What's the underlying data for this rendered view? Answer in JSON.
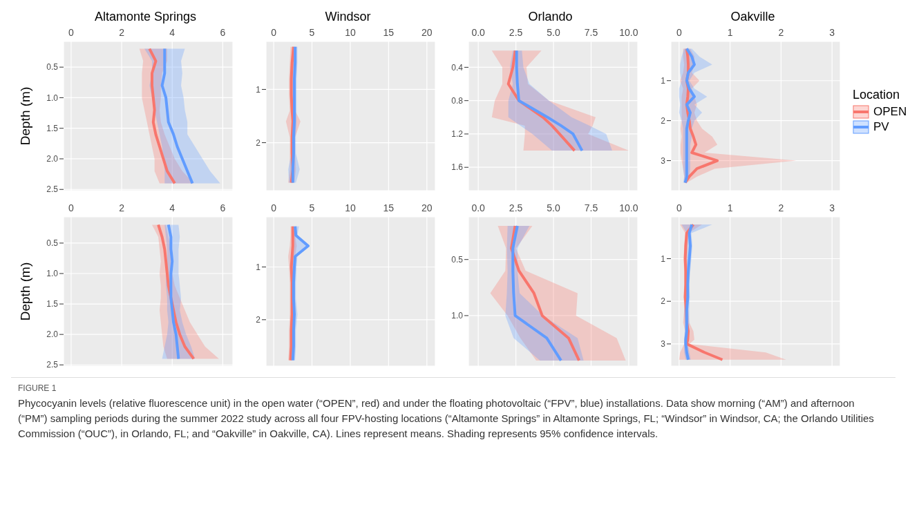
{
  "chart_data": [
    {
      "type": "line",
      "orientation": "horizontal",
      "title": "Altamonte Springs",
      "ylabel": "Depth (m)",
      "xlim": [
        -0.3,
        6.4
      ],
      "xticks": [
        0,
        2,
        4,
        6
      ],
      "ylim": [
        2.52,
        0.08
      ],
      "yticks": [
        {
          "value": 0.5,
          "label": "0.5"
        },
        {
          "value": 1,
          "label": "1.0"
        },
        {
          "value": 1.5,
          "label": "1.5"
        },
        {
          "value": 2,
          "label": "2.0"
        },
        {
          "value": 2.5,
          "label": "2.5"
        }
      ],
      "grid": true,
      "marker": "none",
      "series": [
        {
          "color": "#f8766d",
          "x": [
            0.2,
            0.4,
            0.6,
            0.8,
            1.0,
            1.2,
            1.4,
            1.6,
            1.8,
            2.0,
            2.2,
            2.4
          ],
          "values": [
            3.1,
            3.35,
            3.2,
            3.2,
            3.25,
            3.3,
            3.25,
            3.35,
            3.5,
            3.65,
            3.8,
            4.1
          ],
          "lower": [
            2.7,
            2.85,
            2.8,
            2.8,
            2.8,
            2.9,
            3.0,
            3.1,
            3.2,
            3.3,
            3.3,
            3.5
          ],
          "upper": [
            3.8,
            3.8,
            3.6,
            3.55,
            3.55,
            3.5,
            3.55,
            3.7,
            3.9,
            4.1,
            4.4,
            4.85
          ]
        },
        {
          "color": "#619cff",
          "x": [
            0.2,
            0.4,
            0.6,
            0.8,
            1.0,
            1.2,
            1.4,
            1.6,
            1.8,
            2.0,
            2.2,
            2.4
          ],
          "values": [
            3.7,
            3.7,
            3.7,
            3.6,
            3.75,
            3.8,
            3.85,
            4.05,
            4.2,
            4.4,
            4.6,
            4.8
          ],
          "lower": [
            2.9,
            3.2,
            3.2,
            3.1,
            3.2,
            3.3,
            3.4,
            3.5,
            3.6,
            3.65,
            3.7,
            3.7
          ],
          "upper": [
            4.5,
            4.35,
            4.4,
            4.35,
            4.45,
            4.5,
            4.6,
            4.6,
            4.9,
            5.2,
            5.5,
            5.9
          ]
        }
      ]
    },
    {
      "type": "line",
      "orientation": "horizontal",
      "title": "Windsor",
      "xlim": [
        -1,
        21.1
      ],
      "xticks": [
        0,
        5,
        10,
        15,
        20
      ],
      "ylim": [
        2.9,
        0.1
      ],
      "yticks": [
        1,
        2
      ],
      "grid": true,
      "marker": "none",
      "series": [
        {
          "color": "#f8766d",
          "x": [
            0.2,
            0.5,
            0.8,
            1.1,
            1.4,
            1.6,
            1.9,
            2.2,
            2.5,
            2.75
          ],
          "values": [
            2.6,
            2.4,
            2.3,
            2.3,
            2.4,
            2.5,
            2.4,
            2.4,
            2.5,
            2.3
          ],
          "lower": [
            2.2,
            2.1,
            2.0,
            2.0,
            2.1,
            1.6,
            2.1,
            2.1,
            2.1,
            1.9
          ],
          "upper": [
            3.0,
            2.8,
            2.7,
            2.7,
            2.8,
            3.5,
            2.8,
            2.8,
            2.9,
            2.7
          ]
        },
        {
          "color": "#619cff",
          "x": [
            0.2,
            0.5,
            0.8,
            1.1,
            1.4,
            1.6,
            1.9,
            2.2,
            2.5,
            2.75
          ],
          "values": [
            2.8,
            2.8,
            2.7,
            2.7,
            2.7,
            2.7,
            2.6,
            2.6,
            2.5,
            2.5
          ],
          "lower": [
            2.5,
            2.5,
            2.4,
            2.4,
            2.4,
            2.4,
            2.3,
            2.3,
            1.9,
            2.0
          ],
          "upper": [
            3.1,
            3.1,
            3.0,
            3.0,
            3.0,
            3.0,
            2.9,
            2.9,
            3.4,
            2.9
          ]
        }
      ]
    },
    {
      "type": "line",
      "orientation": "horizontal",
      "title": "Orlando",
      "xlim": [
        -0.65,
        10.6
      ],
      "xticks": [
        {
          "value": 0,
          "label": "0.0"
        },
        {
          "value": 2.5,
          "label": "2.5"
        },
        {
          "value": 5,
          "label": "5.0"
        },
        {
          "value": 7.5,
          "label": "7.5"
        },
        {
          "value": 10,
          "label": "10.0"
        }
      ],
      "ylim": [
        1.88,
        0.09
      ],
      "yticks": [
        0.4,
        0.8,
        1.2,
        1.6
      ],
      "grid": true,
      "marker": "none",
      "series": [
        {
          "color": "#f8766d",
          "x": [
            0.2,
            0.4,
            0.6,
            0.8,
            1.0,
            1.1,
            1.2,
            1.4
          ],
          "values": [
            2.46,
            2.3,
            2.0,
            2.7,
            4.3,
            4.9,
            5.4,
            6.4
          ],
          "lower": [
            0.9,
            1.6,
            1.6,
            1.1,
            0.9,
            3.1,
            3.1,
            3.0
          ],
          "upper": [
            4.2,
            3.2,
            3.3,
            4.7,
            7.8,
            7.6,
            7.3,
            10.0
          ]
        },
        {
          "color": "#619cff",
          "x": [
            0.2,
            0.4,
            0.6,
            0.8,
            1.0,
            1.1,
            1.2,
            1.4
          ],
          "values": [
            2.55,
            2.55,
            2.6,
            2.7,
            4.6,
            5.5,
            6.3,
            6.9
          ],
          "lower": [
            2.3,
            2.1,
            2.3,
            2.0,
            2.0,
            2.8,
            3.6,
            4.9
          ],
          "upper": [
            2.9,
            3.0,
            3.4,
            4.7,
            6.2,
            7.4,
            8.5,
            8.9
          ]
        }
      ]
    },
    {
      "type": "line",
      "orientation": "horizontal",
      "title": "Oakville",
      "xlim": [
        -0.16,
        3.16
      ],
      "xticks": [
        0,
        1,
        2,
        3
      ],
      "ylim": [
        3.75,
        0.02
      ],
      "yticks": [
        1,
        2,
        3
      ],
      "grid": true,
      "marker": "none",
      "legend": "right",
      "legend_title": "Location",
      "series": [
        {
          "name": "OPEN",
          "color": "#f8766d",
          "x": [
            0.2,
            0.4,
            0.6,
            0.8,
            1.0,
            1.2,
            1.4,
            1.6,
            1.8,
            2.0,
            2.2,
            2.4,
            2.6,
            2.8,
            3.0,
            3.2,
            3.4,
            3.55
          ],
          "values": [
            0.15,
            0.17,
            0.18,
            0.18,
            0.15,
            0.18,
            0.17,
            0.15,
            0.17,
            0.2,
            0.22,
            0.28,
            0.33,
            0.25,
            0.75,
            0.35,
            0.2,
            0.12
          ],
          "lower": [
            0.08,
            0.08,
            0.1,
            0.08,
            0.02,
            0.08,
            0.05,
            0.05,
            0.05,
            0.05,
            0.03,
            0.05,
            0.03,
            0.03,
            0.05,
            0.08,
            0.1,
            0.1
          ],
          "upper": [
            0.22,
            0.3,
            0.3,
            0.25,
            0.4,
            0.25,
            0.3,
            0.35,
            0.3,
            0.35,
            0.45,
            0.65,
            0.75,
            0.5,
            2.3,
            0.7,
            0.35,
            0.15
          ]
        },
        {
          "name": "PV",
          "color": "#619cff",
          "x": [
            0.2,
            0.4,
            0.6,
            0.8,
            1.0,
            1.2,
            1.4,
            1.6,
            1.8,
            2.0,
            2.2,
            2.4,
            2.6,
            2.8,
            3.0,
            3.2,
            3.4,
            3.55
          ],
          "values": [
            0.15,
            0.25,
            0.3,
            0.18,
            0.15,
            0.2,
            0.3,
            0.15,
            0.22,
            0.18,
            0.15,
            0.15,
            0.15,
            0.15,
            0.15,
            0.15,
            0.15,
            0.12
          ],
          "lower": [
            0.1,
            0.05,
            0.02,
            0.02,
            0.05,
            0.0,
            0.0,
            0.02,
            0.0,
            0.05,
            0.08,
            0.08,
            0.08,
            0.08,
            0.08,
            0.08,
            0.1,
            0.08
          ],
          "upper": [
            0.25,
            0.4,
            0.65,
            0.3,
            0.2,
            0.3,
            0.55,
            0.3,
            0.45,
            0.3,
            0.25,
            0.25,
            0.22,
            0.22,
            0.22,
            0.22,
            0.2,
            0.15
          ]
        }
      ]
    },
    {
      "type": "line",
      "orientation": "horizontal",
      "ylabel": "Depth (m)",
      "xlim": [
        -0.3,
        6.4
      ],
      "xticks": [
        0,
        2,
        4,
        6
      ],
      "ylim": [
        2.52,
        0.07
      ],
      "yticks": [
        {
          "value": 0.5,
          "label": "0.5"
        },
        {
          "value": 1,
          "label": "1.0"
        },
        {
          "value": 1.5,
          "label": "1.5"
        },
        {
          "value": 2,
          "label": "2.0"
        },
        {
          "value": 2.5,
          "label": "2.5"
        }
      ],
      "grid": true,
      "marker": "none",
      "series": [
        {
          "color": "#f8766d",
          "x": [
            0.2,
            0.4,
            0.6,
            0.8,
            1.0,
            1.2,
            1.4,
            1.6,
            1.8,
            2.0,
            2.2,
            2.4
          ],
          "values": [
            3.45,
            3.6,
            3.7,
            3.75,
            3.8,
            3.85,
            3.95,
            4.05,
            4.15,
            4.3,
            4.5,
            4.85
          ],
          "lower": [
            3.2,
            3.45,
            3.5,
            3.55,
            3.5,
            3.55,
            3.55,
            3.5,
            3.55,
            3.6,
            3.65,
            3.8
          ],
          "upper": [
            3.75,
            3.85,
            3.95,
            3.95,
            4.0,
            4.1,
            4.3,
            4.5,
            4.7,
            5.0,
            5.3,
            5.85
          ]
        },
        {
          "color": "#619cff",
          "x": [
            0.2,
            0.4,
            0.6,
            0.8,
            1.0,
            1.2,
            1.4,
            1.6,
            1.8,
            2.0,
            2.2,
            2.4
          ],
          "values": [
            3.85,
            3.95,
            3.95,
            4.0,
            3.95,
            3.95,
            3.95,
            4.0,
            4.05,
            4.15,
            4.2,
            4.25
          ],
          "lower": [
            3.7,
            3.75,
            3.8,
            3.8,
            3.75,
            3.75,
            3.8,
            3.8,
            3.85,
            3.8,
            3.7,
            3.6
          ],
          "upper": [
            4.25,
            4.3,
            4.25,
            4.25,
            4.25,
            4.3,
            4.35,
            4.3,
            4.4,
            4.55,
            4.75,
            4.9
          ]
        }
      ]
    },
    {
      "type": "line",
      "orientation": "horizontal",
      "xlim": [
        -1,
        21.1
      ],
      "xticks": [
        0,
        5,
        10,
        15,
        20
      ],
      "ylim": [
        2.88,
        0.05
      ],
      "yticks": [
        1,
        2
      ],
      "grid": true,
      "marker": "none",
      "series": [
        {
          "color": "#f8766d",
          "x": [
            0.23,
            0.4,
            0.6,
            0.8,
            1.0,
            1.3,
            1.6,
            1.9,
            2.2,
            2.5,
            2.77
          ],
          "values": [
            2.5,
            2.5,
            2.5,
            2.4,
            2.3,
            2.4,
            2.4,
            2.4,
            2.3,
            2.3,
            2.2
          ],
          "lower": [
            2.2,
            2.2,
            2.1,
            1.9,
            2.0,
            2.1,
            2.1,
            2.1,
            2.0,
            2.0,
            1.9
          ],
          "upper": [
            2.8,
            2.8,
            3.0,
            2.8,
            2.6,
            2.7,
            2.7,
            2.7,
            2.6,
            2.6,
            2.5
          ]
        },
        {
          "color": "#619cff",
          "x": [
            0.23,
            0.4,
            0.6,
            0.8,
            1.0,
            1.3,
            1.6,
            1.9,
            2.2,
            2.5,
            2.77
          ],
          "values": [
            2.8,
            2.9,
            4.5,
            2.8,
            2.7,
            2.6,
            2.6,
            2.7,
            2.6,
            2.6,
            2.5
          ],
          "lower": [
            2.4,
            2.5,
            2.5,
            2.3,
            2.3,
            2.3,
            2.3,
            2.3,
            2.3,
            2.3,
            2.2
          ],
          "upper": [
            3.3,
            3.1,
            4.6,
            3.1,
            3.0,
            2.9,
            2.9,
            3.1,
            2.9,
            2.9,
            2.8
          ]
        }
      ]
    },
    {
      "type": "line",
      "orientation": "horizontal",
      "xlim": [
        -0.65,
        10.6
      ],
      "xticks": [
        {
          "value": 0,
          "label": "0.0"
        },
        {
          "value": 2.5,
          "label": "2.5"
        },
        {
          "value": 5,
          "label": "5.0"
        },
        {
          "value": 7.5,
          "label": "7.5"
        },
        {
          "value": 10,
          "label": "10.0"
        }
      ],
      "ylim": [
        1.45,
        0.12
      ],
      "yticks": [
        {
          "value": 0.5,
          "label": "0.5"
        },
        {
          "value": 1,
          "label": "1.0"
        }
      ],
      "grid": true,
      "marker": "none",
      "series": [
        {
          "color": "#f8766d",
          "x": [
            0.2,
            0.4,
            0.6,
            0.8,
            1.0,
            1.2,
            1.4
          ],
          "values": [
            2.45,
            2.2,
            2.7,
            3.7,
            4.25,
            6.0,
            6.7
          ],
          "lower": [
            1.3,
            1.85,
            1.8,
            0.8,
            1.95,
            2.8,
            3.85
          ],
          "upper": [
            3.6,
            2.5,
            3.15,
            6.6,
            6.5,
            9.2,
            9.8
          ]
        },
        {
          "color": "#619cff",
          "x": [
            0.2,
            0.4,
            0.6,
            0.8,
            1.0,
            1.2,
            1.4
          ],
          "values": [
            2.6,
            2.3,
            2.3,
            2.35,
            2.45,
            4.55,
            5.5
          ],
          "lower": [
            1.95,
            1.9,
            1.95,
            1.9,
            1.8,
            2.35,
            4.1
          ],
          "upper": [
            3.4,
            2.6,
            2.6,
            2.75,
            4.3,
            6.6,
            7.0
          ]
        }
      ]
    },
    {
      "type": "line",
      "orientation": "horizontal",
      "xlim": [
        -0.16,
        3.16
      ],
      "xticks": [
        0,
        1,
        2,
        3
      ],
      "ylim": [
        3.52,
        0.02
      ],
      "yticks": [
        1,
        2,
        3
      ],
      "grid": true,
      "marker": "none",
      "annotations": [
        "FIGURE 1",
        "Phycocyanin levels (relative fluorescence unit) in the open water (“OPEN”, red) and under the floating photovoltaic (“FPV”, blue) installations. Data show morning (“AM”) and afternoon (“PM”) sampling periods during the summer 2022 study across all four FPV-hosting locations (“Altamonte Springs” in Altamonte Springs, FL; “Windsor” in Windsor, CA; the Orlando Utilities Commission (“OUC”), in Orlando, FL; and “Oakville” in Oakville, CA). Lines represent means. Shading represents 95% confidence intervals."
      ],
      "series": [
        {
          "color": "#f8766d",
          "x": [
            0.2,
            0.4,
            0.7,
            1.0,
            1.3,
            1.6,
            1.9,
            2.2,
            2.5,
            2.7,
            2.9,
            3.0,
            3.2,
            3.37
          ],
          "values": [
            0.28,
            0.15,
            0.13,
            0.12,
            0.13,
            0.13,
            0.12,
            0.14,
            0.15,
            0.18,
            0.17,
            0.15,
            0.5,
            0.85
          ],
          "lower": [
            0.02,
            0.12,
            0.1,
            0.09,
            0.1,
            0.1,
            0.09,
            0.1,
            0.08,
            0.12,
            0.1,
            0.1,
            0.02,
            0.0
          ],
          "upper": [
            0.45,
            0.18,
            0.17,
            0.16,
            0.16,
            0.16,
            0.16,
            0.18,
            0.2,
            0.28,
            0.3,
            0.2,
            1.7,
            2.1
          ]
        },
        {
          "color": "#619cff",
          "x": [
            0.2,
            0.4,
            0.7,
            1.0,
            1.3,
            1.6,
            1.9,
            2.2,
            2.5,
            2.7,
            2.9,
            3.0,
            3.2,
            3.37
          ],
          "values": [
            0.25,
            0.2,
            0.22,
            0.2,
            0.18,
            0.17,
            0.17,
            0.15,
            0.15,
            0.15,
            0.13,
            0.13,
            0.15,
            0.18
          ],
          "lower": [
            0.05,
            0.15,
            0.16,
            0.15,
            0.14,
            0.14,
            0.13,
            0.1,
            0.11,
            0.11,
            0.1,
            0.1,
            0.1,
            0.13
          ],
          "upper": [
            0.65,
            0.24,
            0.26,
            0.24,
            0.22,
            0.2,
            0.21,
            0.2,
            0.2,
            0.19,
            0.18,
            0.17,
            0.2,
            0.23
          ]
        }
      ]
    }
  ]
}
